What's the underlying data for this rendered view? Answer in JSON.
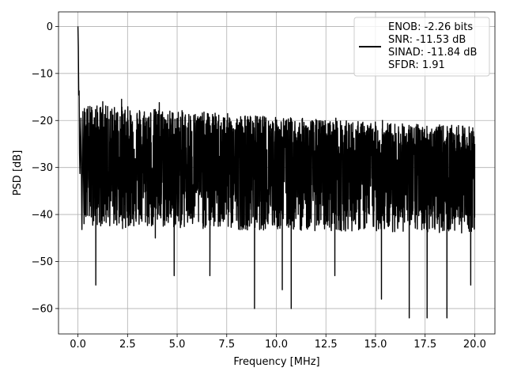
{
  "chart_data": {
    "type": "line",
    "title": "",
    "xlabel": "Frequency [MHz]",
    "ylabel": "PSD [dB]",
    "xlim": [
      -0.98,
      21.02
    ],
    "ylim": [
      -65.4,
      3.1
    ],
    "xticks": [
      0.0,
      2.5,
      5.0,
      7.5,
      10.0,
      12.5,
      15.0,
      17.5,
      20.0
    ],
    "xtick_labels": [
      "0.0",
      "2.5",
      "5.0",
      "7.5",
      "10.0",
      "12.5",
      "15.0",
      "17.5",
      "20.0"
    ],
    "yticks": [
      0,
      -10,
      -20,
      -30,
      -40,
      -50,
      -60
    ],
    "ytick_labels": [
      "0",
      "−10",
      "−20",
      "−30",
      "−40",
      "−50",
      "−60"
    ],
    "grid": true,
    "legend_position": "top-right",
    "legend": {
      "line_color": "#000000",
      "entries": [
        "ENOB: -2.26 bits",
        "SNR: -11.53 dB",
        "SINAD: -11.84 dB",
        "SFDR: 1.91"
      ]
    },
    "series": [
      {
        "color": "#000000",
        "description": "dense noisy power spectral density trace",
        "x": [
          0.0,
          0.02,
          0.04,
          0.06,
          0.08,
          0.1,
          0.15,
          0.2,
          0.25,
          0.3,
          0.35,
          0.9,
          0.95,
          1.25,
          2.2,
          2.25,
          3.9,
          4.1,
          4.85,
          6.65,
          8.9,
          9.05,
          10.3,
          10.75,
          11.3,
          12.95,
          13.0,
          15.3,
          15.35,
          16.7,
          17.6,
          18.6,
          19.8,
          20.0
        ],
        "y": [
          0.0,
          -4.3,
          -14.6,
          -13.7,
          -27.0,
          -31.3,
          -19.5,
          -43.2,
          -18.1,
          -39.7,
          -23.5,
          -55.0,
          -36.0,
          -16.0,
          -15.5,
          -43.0,
          -45.0,
          -16.2,
          -53.0,
          -53.0,
          -60.0,
          -19.2,
          -56.0,
          -60.0,
          -19.7,
          -53.0,
          -19.5,
          -58.0,
          -20.0,
          -62.0,
          -62.0,
          -62.0,
          -55.0,
          -25.0
        ],
        "noise_band": {
          "x": [
            0.3,
            1.0,
            2.5,
            5.0,
            7.5,
            10.0,
            12.5,
            15.0,
            17.5,
            20.0
          ],
          "upper": [
            -16.5,
            -16.8,
            -17.0,
            -17.8,
            -18.5,
            -19.2,
            -19.8,
            -20.3,
            -20.8,
            -21.2
          ],
          "lower": [
            -42.0,
            -42.5,
            -42.8,
            -43.0,
            -43.2,
            -43.4,
            -43.5,
            -43.6,
            -43.8,
            -44.0
          ],
          "center": [
            -28.0,
            -28.5,
            -29.0,
            -29.4,
            -29.8,
            -30.1,
            -30.4,
            -30.7,
            -31.0,
            -31.3
          ]
        }
      }
    ]
  }
}
